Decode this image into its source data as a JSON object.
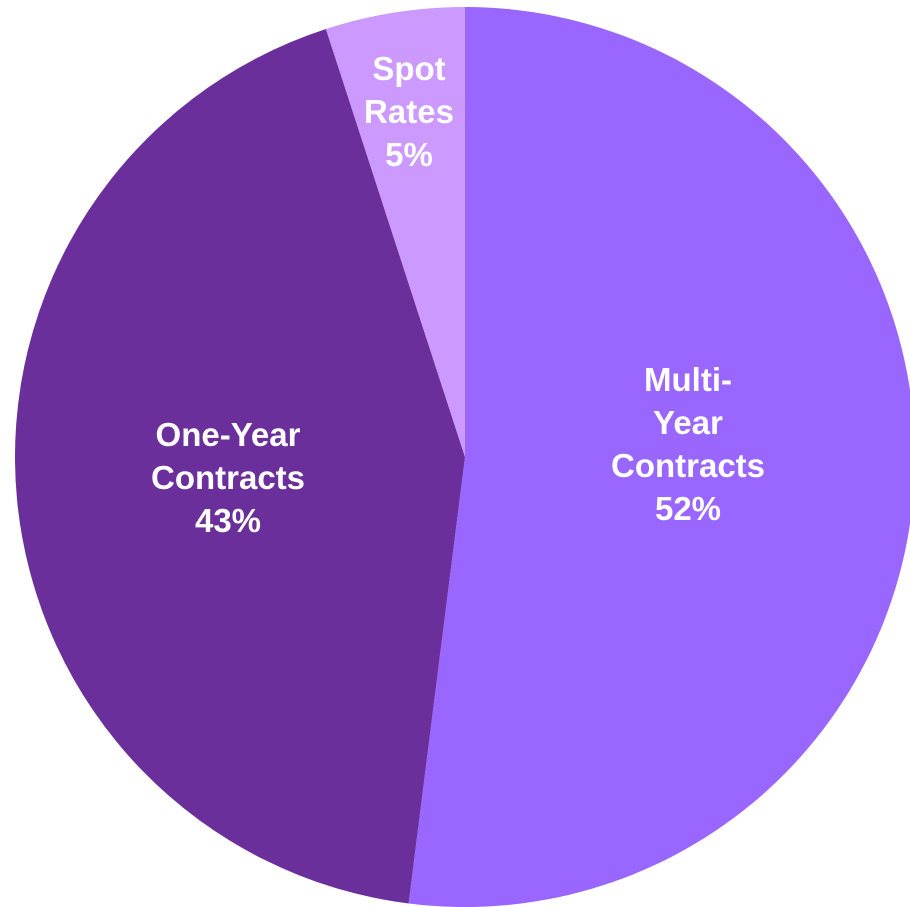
{
  "chart_data": {
    "type": "pie",
    "title": "",
    "start_angle_deg": 0,
    "direction": "clockwise",
    "slices": [
      {
        "label_lines": [
          "Multi-",
          "Year",
          "Contracts"
        ],
        "value": 52,
        "value_label": "52%",
        "color": "#9966ff"
      },
      {
        "label_lines": [
          "One-Year",
          "Contracts"
        ],
        "value": 43,
        "value_label": "43%",
        "color": "#6b2f9b"
      },
      {
        "label_lines": [
          "Spot",
          "Rates"
        ],
        "value": 5,
        "value_label": "5%",
        "color": "#cc99ff"
      }
    ],
    "legend": "none"
  }
}
